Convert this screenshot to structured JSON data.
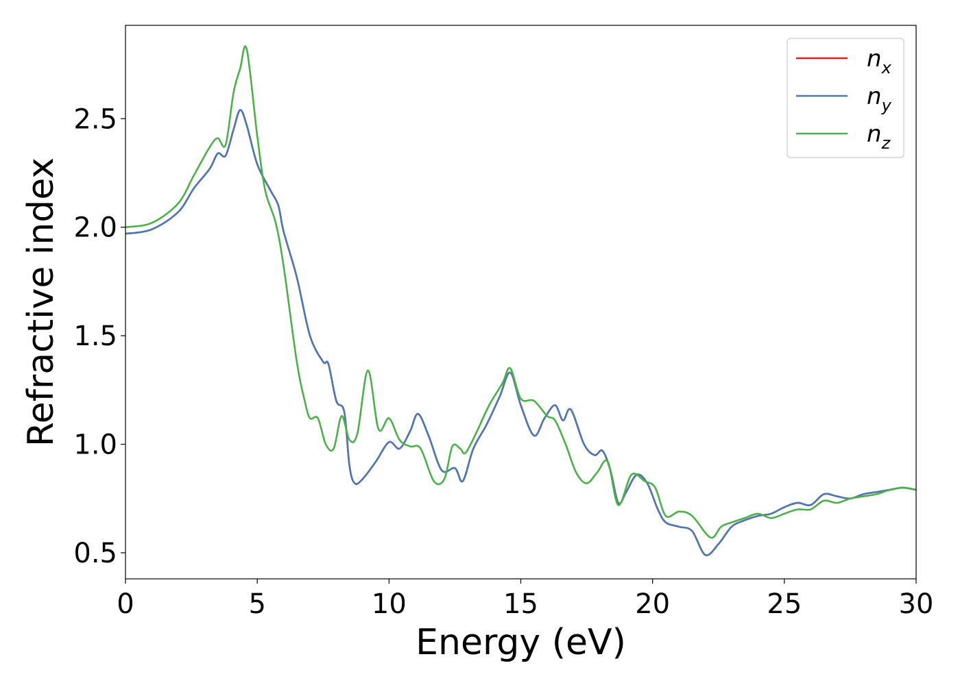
{
  "chart_data": {
    "type": "line",
    "title": "",
    "xlabel": "Energy (eV)",
    "ylabel": "Refractive index",
    "xlim": [
      0,
      30
    ],
    "ylim": [
      0.38,
      2.93
    ],
    "xticks": [
      0,
      5,
      10,
      15,
      20,
      25,
      30
    ],
    "xtick_labels": [
      "0",
      "5",
      "10",
      "15",
      "20",
      "25",
      "30"
    ],
    "yticks": [
      0.5,
      1.0,
      1.5,
      2.0,
      2.5
    ],
    "ytick_labels": [
      "0.5",
      "1.0",
      "1.5",
      "2.0",
      "2.5"
    ],
    "grid": false,
    "legend_position": "top-right",
    "series": [
      {
        "name": "n_x",
        "legend_base": "n",
        "legend_sub": "x",
        "color": "#e41a1c",
        "points": [
          [
            0,
            1.97
          ],
          [
            1,
            1.99
          ],
          [
            2,
            2.07
          ],
          [
            2.6,
            2.18
          ],
          [
            3.2,
            2.27
          ],
          [
            3.5,
            2.34
          ],
          [
            3.8,
            2.33
          ],
          [
            4.1,
            2.45
          ],
          [
            4.35,
            2.54
          ],
          [
            4.6,
            2.47
          ],
          [
            5,
            2.29
          ],
          [
            5.5,
            2.17
          ],
          [
            5.8,
            2.1
          ],
          [
            6,
            1.98
          ],
          [
            6.5,
            1.77
          ],
          [
            7,
            1.5
          ],
          [
            7.5,
            1.38
          ],
          [
            7.7,
            1.37
          ],
          [
            8,
            1.2
          ],
          [
            8.3,
            1.15
          ],
          [
            8.5,
            0.9
          ],
          [
            8.7,
            0.82
          ],
          [
            9,
            0.84
          ],
          [
            9.5,
            0.92
          ],
          [
            10,
            1.01
          ],
          [
            10.4,
            0.98
          ],
          [
            10.8,
            1.06
          ],
          [
            11.1,
            1.14
          ],
          [
            11.5,
            1.04
          ],
          [
            12,
            0.88
          ],
          [
            12.5,
            0.89
          ],
          [
            12.8,
            0.83
          ],
          [
            13.2,
            0.98
          ],
          [
            13.7,
            1.09
          ],
          [
            14.2,
            1.22
          ],
          [
            14.6,
            1.33
          ],
          [
            15,
            1.18
          ],
          [
            15.5,
            1.04
          ],
          [
            15.9,
            1.12
          ],
          [
            16.3,
            1.18
          ],
          [
            16.6,
            1.11
          ],
          [
            16.9,
            1.16
          ],
          [
            17.4,
            1
          ],
          [
            17.8,
            0.95
          ],
          [
            18.1,
            0.97
          ],
          [
            18.4,
            0.88
          ],
          [
            18.7,
            0.73
          ],
          [
            19,
            0.78
          ],
          [
            19.4,
            0.86
          ],
          [
            19.8,
            0.82
          ],
          [
            20.2,
            0.7
          ],
          [
            20.5,
            0.64
          ],
          [
            21,
            0.62
          ],
          [
            21.5,
            0.6
          ],
          [
            22,
            0.49
          ],
          [
            22.5,
            0.54
          ],
          [
            23,
            0.62
          ],
          [
            23.5,
            0.65
          ],
          [
            24,
            0.67
          ],
          [
            24.5,
            0.68
          ],
          [
            25,
            0.71
          ],
          [
            25.5,
            0.73
          ],
          [
            26,
            0.72
          ],
          [
            26.5,
            0.77
          ],
          [
            27,
            0.76
          ],
          [
            27.5,
            0.75
          ],
          [
            28,
            0.77
          ],
          [
            28.5,
            0.78
          ],
          [
            29,
            0.79
          ],
          [
            29.5,
            0.8
          ],
          [
            30,
            0.79
          ]
        ]
      },
      {
        "name": "n_y",
        "legend_base": "n",
        "legend_sub": "y",
        "color": "#4b7ab2",
        "points": [
          [
            0,
            1.97
          ],
          [
            1,
            1.99
          ],
          [
            2,
            2.07
          ],
          [
            2.6,
            2.18
          ],
          [
            3.2,
            2.27
          ],
          [
            3.5,
            2.34
          ],
          [
            3.8,
            2.33
          ],
          [
            4.1,
            2.45
          ],
          [
            4.35,
            2.54
          ],
          [
            4.6,
            2.47
          ],
          [
            5,
            2.29
          ],
          [
            5.5,
            2.17
          ],
          [
            5.8,
            2.1
          ],
          [
            6,
            1.98
          ],
          [
            6.5,
            1.77
          ],
          [
            7,
            1.5
          ],
          [
            7.5,
            1.38
          ],
          [
            7.7,
            1.37
          ],
          [
            8,
            1.2
          ],
          [
            8.3,
            1.15
          ],
          [
            8.5,
            0.9
          ],
          [
            8.7,
            0.82
          ],
          [
            9,
            0.84
          ],
          [
            9.5,
            0.92
          ],
          [
            10,
            1.01
          ],
          [
            10.4,
            0.98
          ],
          [
            10.8,
            1.06
          ],
          [
            11.1,
            1.14
          ],
          [
            11.5,
            1.04
          ],
          [
            12,
            0.88
          ],
          [
            12.5,
            0.89
          ],
          [
            12.8,
            0.83
          ],
          [
            13.2,
            0.98
          ],
          [
            13.7,
            1.09
          ],
          [
            14.2,
            1.22
          ],
          [
            14.6,
            1.33
          ],
          [
            15,
            1.18
          ],
          [
            15.5,
            1.04
          ],
          [
            15.9,
            1.12
          ],
          [
            16.3,
            1.18
          ],
          [
            16.6,
            1.11
          ],
          [
            16.9,
            1.16
          ],
          [
            17.4,
            1
          ],
          [
            17.8,
            0.95
          ],
          [
            18.1,
            0.97
          ],
          [
            18.4,
            0.88
          ],
          [
            18.7,
            0.73
          ],
          [
            19,
            0.78
          ],
          [
            19.4,
            0.86
          ],
          [
            19.8,
            0.82
          ],
          [
            20.2,
            0.7
          ],
          [
            20.5,
            0.64
          ],
          [
            21,
            0.62
          ],
          [
            21.5,
            0.6
          ],
          [
            22,
            0.49
          ],
          [
            22.5,
            0.54
          ],
          [
            23,
            0.62
          ],
          [
            23.5,
            0.65
          ],
          [
            24,
            0.67
          ],
          [
            24.5,
            0.68
          ],
          [
            25,
            0.71
          ],
          [
            25.5,
            0.73
          ],
          [
            26,
            0.72
          ],
          [
            26.5,
            0.77
          ],
          [
            27,
            0.76
          ],
          [
            27.5,
            0.75
          ],
          [
            28,
            0.77
          ],
          [
            28.5,
            0.78
          ],
          [
            29,
            0.79
          ],
          [
            29.5,
            0.8
          ],
          [
            30,
            0.79
          ]
        ]
      },
      {
        "name": "n_z",
        "legend_base": "n",
        "legend_sub": "z",
        "color": "#4daf4a",
        "points": [
          [
            0,
            2
          ],
          [
            1,
            2.02
          ],
          [
            2,
            2.11
          ],
          [
            2.6,
            2.24
          ],
          [
            3.2,
            2.37
          ],
          [
            3.5,
            2.41
          ],
          [
            3.8,
            2.38
          ],
          [
            4.1,
            2.62
          ],
          [
            4.35,
            2.73
          ],
          [
            4.6,
            2.82
          ],
          [
            5,
            2.42
          ],
          [
            5.3,
            2.17
          ],
          [
            5.7,
            2.02
          ],
          [
            6,
            1.82
          ],
          [
            6.5,
            1.38
          ],
          [
            6.8,
            1.2
          ],
          [
            7,
            1.12
          ],
          [
            7.3,
            1.12
          ],
          [
            7.6,
            1
          ],
          [
            7.9,
            0.98
          ],
          [
            8.2,
            1.13
          ],
          [
            8.5,
            1.02
          ],
          [
            8.8,
            1.05
          ],
          [
            9.2,
            1.34
          ],
          [
            9.6,
            1.07
          ],
          [
            10,
            1.12
          ],
          [
            10.4,
            1.02
          ],
          [
            10.8,
            0.99
          ],
          [
            11.2,
            0.98
          ],
          [
            11.7,
            0.83
          ],
          [
            12.1,
            0.84
          ],
          [
            12.4,
            0.99
          ],
          [
            12.7,
            0.98
          ],
          [
            12.9,
            0.96
          ],
          [
            13.3,
            1.05
          ],
          [
            13.8,
            1.18
          ],
          [
            14.3,
            1.28
          ],
          [
            14.6,
            1.35
          ],
          [
            15,
            1.21
          ],
          [
            15.5,
            1.2
          ],
          [
            16,
            1.13
          ],
          [
            16.3,
            1.11
          ],
          [
            16.7,
            1
          ],
          [
            17.1,
            0.87
          ],
          [
            17.5,
            0.82
          ],
          [
            17.9,
            0.87
          ],
          [
            18.3,
            0.92
          ],
          [
            18.7,
            0.72
          ],
          [
            19.2,
            0.86
          ],
          [
            19.7,
            0.83
          ],
          [
            20.1,
            0.8
          ],
          [
            20.5,
            0.67
          ],
          [
            21,
            0.69
          ],
          [
            21.5,
            0.67
          ],
          [
            22.2,
            0.57
          ],
          [
            22.6,
            0.62
          ],
          [
            23,
            0.64
          ],
          [
            23.5,
            0.66
          ],
          [
            24,
            0.68
          ],
          [
            24.5,
            0.66
          ],
          [
            25,
            0.68
          ],
          [
            25.5,
            0.7
          ],
          [
            26,
            0.7
          ],
          [
            26.5,
            0.74
          ],
          [
            27,
            0.73
          ],
          [
            27.5,
            0.75
          ],
          [
            28,
            0.76
          ],
          [
            28.5,
            0.77
          ],
          [
            29,
            0.79
          ],
          [
            29.5,
            0.8
          ],
          [
            30,
            0.79
          ]
        ]
      }
    ]
  }
}
